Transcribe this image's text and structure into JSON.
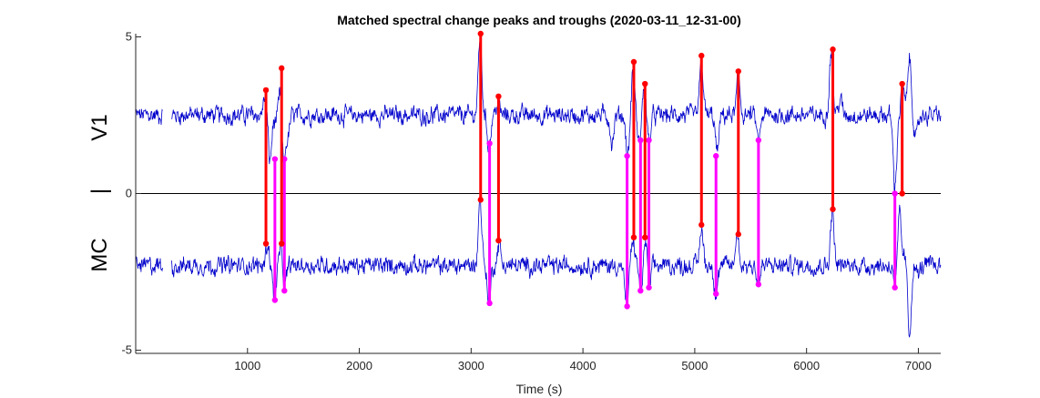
{
  "chart_data": {
    "type": "line",
    "title": "Matched spectral change peaks and troughs (2020-03-11_12-31-00)",
    "xlabel": "Time (s)",
    "ylabel_parts": [
      "MC",
      "|",
      "V1"
    ],
    "xlim": [
      0,
      7200
    ],
    "ylim": [
      -5.1,
      5.1
    ],
    "xticks": [
      1000,
      2000,
      3000,
      4000,
      5000,
      6000,
      7000
    ],
    "yticks": [
      -5,
      0,
      5
    ],
    "ytick_labels": [
      "-5",
      "0",
      "5"
    ],
    "zero_line": 0,
    "grid": false,
    "colors": {
      "traces": "#0000cc",
      "v1_links": "#ff0000",
      "mc_links": "#ff00ff",
      "axes": "#262626",
      "zero_line": "#000000"
    },
    "series": [
      {
        "key": "v1",
        "baseline": 2.5,
        "range": [
          0,
          7200
        ],
        "gaps": [
          [
            240,
            320
          ]
        ],
        "features": [
          {
            "x": 1160,
            "y": 3.2
          },
          {
            "x": 1200,
            "y": 1.0
          },
          {
            "x": 1250,
            "y": 2.3
          },
          {
            "x": 1300,
            "y": 3.7
          },
          {
            "x": 1320,
            "y": 0.5
          },
          {
            "x": 1360,
            "y": 1.8
          },
          {
            "x": 3080,
            "y": 5.0
          },
          {
            "x": 3160,
            "y": 1.5
          },
          {
            "x": 3240,
            "y": 2.9
          },
          {
            "x": 4260,
            "y": 1.6
          },
          {
            "x": 4400,
            "y": 1.2
          },
          {
            "x": 4450,
            "y": 4.0
          },
          {
            "x": 4500,
            "y": 1.6
          },
          {
            "x": 4550,
            "y": 3.4
          },
          {
            "x": 4590,
            "y": 1.6
          },
          {
            "x": 5060,
            "y": 4.2
          },
          {
            "x": 5200,
            "y": 1.3
          },
          {
            "x": 5390,
            "y": 3.7
          },
          {
            "x": 5570,
            "y": 1.6
          },
          {
            "x": 6220,
            "y": 4.5
          },
          {
            "x": 6300,
            "y": 3.0
          },
          {
            "x": 6790,
            "y": 0.2
          },
          {
            "x": 6860,
            "y": 3.4
          },
          {
            "x": 6920,
            "y": 4.3
          },
          {
            "x": 6980,
            "y": 1.7
          }
        ]
      },
      {
        "key": "mc",
        "baseline": -2.3,
        "range": [
          0,
          7200
        ],
        "gaps": [
          [
            240,
            320
          ]
        ],
        "features": [
          {
            "x": 1180,
            "y": -1.6
          },
          {
            "x": 1240,
            "y": -3.3
          },
          {
            "x": 1300,
            "y": -1.7
          },
          {
            "x": 1330,
            "y": -3.1
          },
          {
            "x": 3080,
            "y": -0.2
          },
          {
            "x": 3160,
            "y": -3.4
          },
          {
            "x": 3250,
            "y": -1.6
          },
          {
            "x": 4390,
            "y": -3.6
          },
          {
            "x": 4450,
            "y": -1.5
          },
          {
            "x": 4520,
            "y": -3.1
          },
          {
            "x": 4560,
            "y": -1.4
          },
          {
            "x": 4590,
            "y": -3.0
          },
          {
            "x": 5060,
            "y": -1.1
          },
          {
            "x": 5190,
            "y": -3.2
          },
          {
            "x": 5380,
            "y": -1.3
          },
          {
            "x": 5570,
            "y": -2.9
          },
          {
            "x": 6230,
            "y": -0.5
          },
          {
            "x": 6800,
            "y": -3.0
          },
          {
            "x": 6830,
            "y": -0.6
          },
          {
            "x": 6880,
            "y": -2.0
          },
          {
            "x": 6920,
            "y": -4.5
          },
          {
            "x": 7000,
            "y": -2.6
          }
        ]
      }
    ],
    "v1_peak_links": [
      {
        "x": 1165,
        "v1": 3.3,
        "mc": -1.6
      },
      {
        "x": 1305,
        "v1": 4.0,
        "mc": -1.6
      },
      {
        "x": 3085,
        "v1": 5.1,
        "mc": -0.2
      },
      {
        "x": 3245,
        "v1": 3.1,
        "mc": -1.5
      },
      {
        "x": 4455,
        "v1": 4.2,
        "mc": -1.4
      },
      {
        "x": 4555,
        "v1": 3.5,
        "mc": -1.4
      },
      {
        "x": 5060,
        "v1": 4.4,
        "mc": -1.0
      },
      {
        "x": 5390,
        "v1": 3.9,
        "mc": -1.3
      },
      {
        "x": 6235,
        "v1": 4.6,
        "mc": -0.5
      },
      {
        "x": 6855,
        "v1": 3.5,
        "mc": 0.0
      }
    ],
    "mc_trough_links": [
      {
        "x": 1245,
        "v1": 1.1,
        "mc": -3.4
      },
      {
        "x": 1330,
        "v1": 1.1,
        "mc": -3.1
      },
      {
        "x": 3165,
        "v1": 1.6,
        "mc": -3.5
      },
      {
        "x": 4395,
        "v1": 1.2,
        "mc": -3.6
      },
      {
        "x": 4515,
        "v1": 1.7,
        "mc": -3.1
      },
      {
        "x": 4590,
        "v1": 1.7,
        "mc": -3.0
      },
      {
        "x": 5190,
        "v1": 1.2,
        "mc": -3.2
      },
      {
        "x": 5570,
        "v1": 1.7,
        "mc": -2.9
      },
      {
        "x": 6790,
        "v1": 0.0,
        "mc": -3.0
      }
    ]
  }
}
